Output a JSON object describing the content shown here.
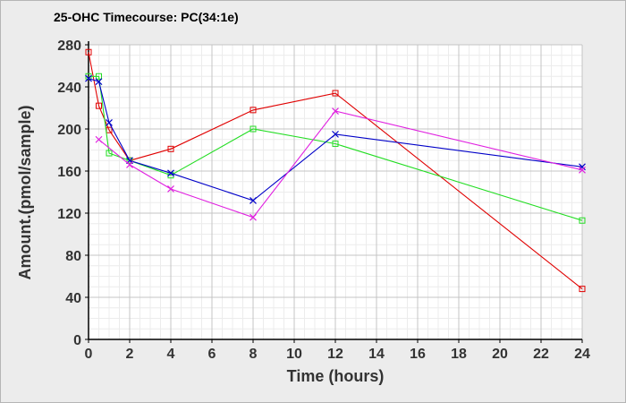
{
  "chart_data": {
    "type": "line",
    "title": "25-OHC Timecourse: PC(34:1e)",
    "xlabel": "Time (hours)",
    "ylabel": "Amount.(pmol/sample)",
    "xlim": [
      0,
      24
    ],
    "ylim": [
      0,
      280
    ],
    "xticks": [
      0,
      2,
      4,
      6,
      8,
      10,
      12,
      14,
      16,
      18,
      20,
      22,
      24
    ],
    "yticks": [
      0,
      40,
      80,
      120,
      160,
      200,
      240,
      280
    ],
    "minor_grid": true,
    "legend": "none",
    "series": [
      {
        "name": "red",
        "color": "#e00000",
        "marker": "square",
        "points": [
          [
            0,
            273
          ],
          [
            0.5,
            222
          ],
          [
            1,
            199
          ],
          [
            2,
            170
          ],
          [
            4,
            181
          ],
          [
            8,
            218
          ],
          [
            12,
            234
          ],
          [
            24,
            48
          ]
        ]
      },
      {
        "name": "green",
        "color": "#22dd22",
        "marker": "square",
        "points": [
          [
            0,
            250
          ],
          [
            0.5,
            250
          ],
          [
            1,
            177
          ],
          [
            2,
            170
          ],
          [
            4,
            156
          ],
          [
            8,
            200
          ],
          [
            12,
            186
          ],
          [
            24,
            113
          ]
        ]
      },
      {
        "name": "blue",
        "color": "#0000c8",
        "marker": "x",
        "points": [
          [
            0,
            248
          ],
          [
            0.5,
            245
          ],
          [
            1,
            206
          ],
          [
            2,
            170
          ],
          [
            4,
            158
          ],
          [
            8,
            132
          ],
          [
            12,
            195
          ],
          [
            24,
            164
          ]
        ]
      },
      {
        "name": "magenta",
        "color": "#e020e0",
        "marker": "x",
        "points": [
          [
            0.5,
            190
          ],
          [
            2,
            166
          ],
          [
            4,
            143
          ],
          [
            8,
            116
          ],
          [
            12,
            217
          ],
          [
            24,
            161
          ]
        ]
      }
    ]
  },
  "colors": {
    "plot_background": "#ffffff",
    "major_grid": "#c4c4c4",
    "minor_grid": "#ececec",
    "axis": "#000000"
  }
}
